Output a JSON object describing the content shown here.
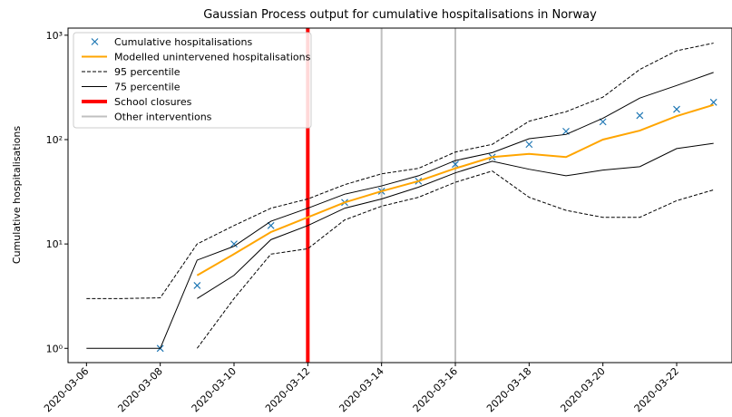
{
  "chart_data": {
    "type": "line",
    "title": "Gaussian Process output for cumulative hospitalisations in Norway",
    "y_label": "Cumulative hospitalisations",
    "log_y": true,
    "legend": "upper left",
    "x": [
      "2020-03-06",
      "2020-03-07",
      "2020-03-08",
      "2020-03-09",
      "2020-03-10",
      "2020-03-11",
      "2020-03-12",
      "2020-03-13",
      "2020-03-14",
      "2020-03-15",
      "2020-03-16",
      "2020-03-17",
      "2020-03-18",
      "2020-03-19",
      "2020-03-20",
      "2020-03-21",
      "2020-03-22",
      "2020-03-23"
    ],
    "xlim": [
      "2020-03-05T12:00",
      "2020-03-23T12:00"
    ],
    "xticks": [
      "2020-03-06",
      "2020-03-08",
      "2020-03-10",
      "2020-03-12",
      "2020-03-14",
      "2020-03-16",
      "2020-03-18",
      "2020-03-20",
      "2020-03-22"
    ],
    "ylim": [
      0.73,
      1170
    ],
    "yticks": [
      {
        "value": 1,
        "label": "10⁰"
      },
      {
        "value": 10,
        "label": "10¹"
      },
      {
        "value": 100,
        "label": "10²"
      },
      {
        "value": 1000,
        "label": "10³"
      }
    ],
    "series": [
      {
        "name": "Cumulative hospitalisations",
        "color": "#1f77b4",
        "marker": "x",
        "values": [
          null,
          null,
          1,
          4,
          10,
          15,
          null,
          25,
          32,
          40,
          58,
          68,
          90,
          120,
          148,
          170,
          195,
          228
        ]
      },
      {
        "name": "Modelled unintervened hospitalisations",
        "color": "#ffa500",
        "width": 2,
        "values": [
          null,
          null,
          null,
          5,
          8,
          13,
          18,
          25,
          32,
          40,
          53,
          68,
          73,
          68,
          100,
          122,
          168,
          215
        ]
      },
      {
        "name": "95 percentile",
        "color": "#000000",
        "dash": "dashed",
        "width": 1,
        "values": [
          3,
          3,
          3.05,
          10,
          15,
          22,
          27,
          37,
          47,
          53,
          76,
          90,
          150,
          185,
          255,
          470,
          710,
          840
        ]
      },
      {
        "name": "95 percentile",
        "color": "#000000",
        "dash": "dashed",
        "width": 1,
        "legend": false,
        "values": [
          null,
          null,
          null,
          1,
          3,
          8,
          9,
          17,
          23,
          28,
          39,
          50,
          28,
          21,
          18,
          18,
          26,
          33
        ]
      },
      {
        "name": "75 percentile",
        "color": "#000000",
        "width": 1,
        "values": [
          1,
          1,
          1,
          7,
          9.5,
          16.5,
          22,
          30,
          36,
          45,
          63,
          75,
          102,
          112,
          160,
          250,
          330,
          440
        ]
      },
      {
        "name": "75 percentile",
        "color": "#000000",
        "width": 1,
        "legend": false,
        "values": [
          null,
          null,
          null,
          3,
          5,
          11,
          15,
          22,
          27,
          35,
          48,
          62,
          52,
          45,
          51,
          55,
          82,
          92
        ]
      }
    ],
    "vlines": [
      {
        "name": "School closures",
        "color": "#ff0000",
        "width": 4,
        "x": [
          "2020-03-12"
        ]
      },
      {
        "name": "Other interventions",
        "color": "#c0c0c0",
        "width": 2,
        "x": [
          "2020-03-14",
          "2020-03-16"
        ]
      }
    ]
  }
}
